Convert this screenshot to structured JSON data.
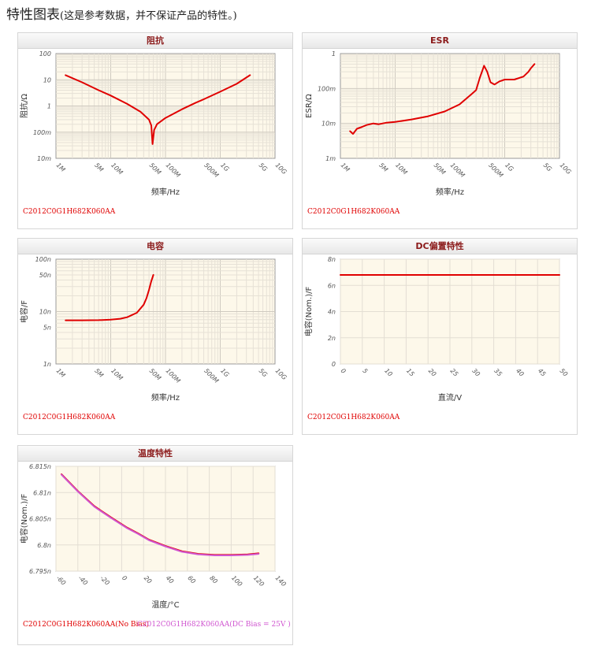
{
  "page": {
    "title": "特性图表",
    "note": "(这是参考数据，并不保证产品的特性。)"
  },
  "charts": [
    {
      "id": "impedance",
      "header": "阻抗",
      "part_labels": [
        {
          "text": "C2012C0G1H682K060AA",
          "color": "#e00000"
        }
      ],
      "chart_data": {
        "type": "line",
        "title": "阻抗",
        "xlabel": "频率/Hz",
        "ylabel": "阻抗/Ω",
        "xscale": "log",
        "yscale": "log",
        "xlim": [
          1000000,
          10000000000
        ],
        "ylim": [
          0.01,
          100
        ],
        "x_ticks": [
          {
            "v": 1000000,
            "label": "1M"
          },
          {
            "v": 5000000,
            "label": "5M"
          },
          {
            "v": 10000000,
            "label": "10M"
          },
          {
            "v": 50000000,
            "label": "50M"
          },
          {
            "v": 100000000,
            "label": "100M"
          },
          {
            "v": 500000000,
            "label": "500M"
          },
          {
            "v": 1000000000,
            "label": "1G"
          },
          {
            "v": 5000000000,
            "label": "5G"
          },
          {
            "v": 10000000000,
            "label": "10G"
          }
        ],
        "y_ticks": [
          {
            "v": 100,
            "label": "100"
          },
          {
            "v": 10,
            "label": "10"
          },
          {
            "v": 1,
            "label": "1"
          },
          {
            "v": 0.1,
            "label": "100m"
          },
          {
            "v": 0.01,
            "label": "10m"
          }
        ],
        "grid": true,
        "series": [
          {
            "color": "#e00000",
            "x": [
              1500000,
              3000000,
              6000000,
              10000000,
              20000000,
              35000000,
              50000000,
              55000000,
              58000000,
              62000000,
              70000000,
              100000000,
              200000000,
              350000000,
              500000000,
              1000000000,
              2000000000,
              3500000000
            ],
            "y": [
              15,
              8,
              4,
              2.5,
              1.2,
              0.6,
              0.3,
              0.18,
              0.035,
              0.12,
              0.2,
              0.35,
              0.75,
              1.3,
              1.8,
              3.5,
              7,
              15
            ]
          }
        ]
      }
    },
    {
      "id": "esr",
      "header": "ESR",
      "part_labels": [
        {
          "text": "C2012C0G1H682K060AA",
          "color": "#e00000"
        }
      ],
      "chart_data": {
        "type": "line",
        "title": "ESR",
        "xlabel": "频率/Hz",
        "ylabel": "ESR/Ω",
        "xscale": "log",
        "yscale": "log",
        "xlim": [
          1000000,
          10000000000
        ],
        "ylim": [
          0.001,
          1
        ],
        "x_ticks": [
          {
            "v": 1000000,
            "label": "1M"
          },
          {
            "v": 5000000,
            "label": "5M"
          },
          {
            "v": 10000000,
            "label": "10M"
          },
          {
            "v": 50000000,
            "label": "50M"
          },
          {
            "v": 100000000,
            "label": "100M"
          },
          {
            "v": 500000000,
            "label": "500M"
          },
          {
            "v": 1000000000,
            "label": "1G"
          },
          {
            "v": 5000000000,
            "label": "5G"
          },
          {
            "v": 10000000000,
            "label": "10G"
          }
        ],
        "y_ticks": [
          {
            "v": 1,
            "label": "1"
          },
          {
            "v": 0.1,
            "label": "100m"
          },
          {
            "v": 0.01,
            "label": "10m"
          },
          {
            "v": 0.001,
            "label": "1m"
          }
        ],
        "grid": true,
        "series": [
          {
            "color": "#e00000",
            "x": [
              1500000,
              1700000,
              2000000,
              2500000,
              3000000,
              4000000,
              5000000,
              7000000,
              10000000,
              20000000,
              40000000,
              80000000,
              150000000,
              250000000,
              300000000,
              350000000,
              420000000,
              480000000,
              550000000,
              650000000,
              800000000,
              1000000000,
              1500000000,
              2200000000,
              2700000000,
              3000000000,
              3500000000
            ],
            "y": [
              0.006,
              0.005,
              0.007,
              0.008,
              0.009,
              0.01,
              0.0095,
              0.0105,
              0.011,
              0.013,
              0.016,
              0.022,
              0.035,
              0.07,
              0.09,
              0.2,
              0.45,
              0.3,
              0.15,
              0.13,
              0.16,
              0.18,
              0.18,
              0.22,
              0.3,
              0.38,
              0.5
            ]
          }
        ]
      }
    },
    {
      "id": "capacitance",
      "header": "电容",
      "part_labels": [
        {
          "text": "C2012C0G1H682K060AA",
          "color": "#e00000"
        }
      ],
      "chart_data": {
        "type": "line",
        "title": "电容",
        "xlabel": "频率/Hz",
        "ylabel": "电容/F",
        "xscale": "log",
        "yscale": "log",
        "xlim": [
          1000000,
          10000000000
        ],
        "ylim": [
          1e-09,
          1e-07
        ],
        "x_ticks": [
          {
            "v": 1000000,
            "label": "1M"
          },
          {
            "v": 5000000,
            "label": "5M"
          },
          {
            "v": 10000000,
            "label": "10M"
          },
          {
            "v": 50000000,
            "label": "50M"
          },
          {
            "v": 100000000,
            "label": "100M"
          },
          {
            "v": 500000000,
            "label": "500M"
          },
          {
            "v": 1000000000,
            "label": "1G"
          },
          {
            "v": 5000000000,
            "label": "5G"
          },
          {
            "v": 10000000000,
            "label": "10G"
          }
        ],
        "y_ticks": [
          {
            "v": 1e-07,
            "label": "100n"
          },
          {
            "v": 5e-08,
            "label": "50n"
          },
          {
            "v": 1e-08,
            "label": "10n"
          },
          {
            "v": 5e-09,
            "label": "5n"
          },
          {
            "v": 1e-09,
            "label": "1n"
          }
        ],
        "grid": true,
        "series": [
          {
            "color": "#e00000",
            "x": [
              1500000,
              3000000,
              6000000,
              10000000,
              15000000,
              20000000,
              30000000,
              40000000,
              45000000,
              50000000,
              55000000,
              60000000
            ],
            "y": [
              6.8e-09,
              6.8e-09,
              6.85e-09,
              7e-09,
              7.3e-09,
              7.8e-09,
              9.5e-09,
              1.35e-08,
              1.8e-08,
              2.6e-08,
              3.8e-08,
              5e-08
            ]
          }
        ]
      }
    },
    {
      "id": "dc-bias",
      "header": "DC偏置特性",
      "part_labels": [
        {
          "text": "C2012C0G1H682K060AA",
          "color": "#e00000"
        }
      ],
      "chart_data": {
        "type": "line",
        "title": "DC偏置特性",
        "xlabel": "直流/V",
        "ylabel": "电容(Nom.)/F",
        "xscale": "linear",
        "yscale": "linear",
        "xlim": [
          0,
          50
        ],
        "ylim": [
          0,
          8e-09
        ],
        "x_ticks": [
          {
            "v": 0,
            "label": "0"
          },
          {
            "v": 5,
            "label": "5"
          },
          {
            "v": 10,
            "label": "10"
          },
          {
            "v": 15,
            "label": "15"
          },
          {
            "v": 20,
            "label": "20"
          },
          {
            "v": 25,
            "label": "25"
          },
          {
            "v": 30,
            "label": "30"
          },
          {
            "v": 35,
            "label": "35"
          },
          {
            "v": 40,
            "label": "40"
          },
          {
            "v": 45,
            "label": "45"
          },
          {
            "v": 50,
            "label": "50"
          }
        ],
        "y_ticks": [
          {
            "v": 8e-09,
            "label": "8n"
          },
          {
            "v": 6e-09,
            "label": "6n"
          },
          {
            "v": 4e-09,
            "label": "4n"
          },
          {
            "v": 2e-09,
            "label": "2n"
          },
          {
            "v": 0,
            "label": "0"
          }
        ],
        "grid": true,
        "series": [
          {
            "color": "#e00000",
            "x": [
              0,
              50
            ],
            "y": [
              6.8e-09,
              6.8e-09
            ]
          }
        ]
      }
    },
    {
      "id": "temperature",
      "header": "温度特性",
      "part_labels": [
        {
          "text": "C2012C0G1H682K060AA(No Bias)",
          "color": "#e00000"
        },
        {
          "text": "C2012C0G1H682K060AA(DC Bias = 25V )",
          "color": "#d055d0"
        }
      ],
      "chart_data": {
        "type": "line",
        "title": "温度特性",
        "xlabel": "温度/°C",
        "ylabel": "电容(Nom.)/F",
        "xscale": "linear",
        "yscale": "linear",
        "xlim": [
          -60,
          140
        ],
        "ylim": [
          6.795e-09,
          6.815e-09
        ],
        "x_ticks": [
          {
            "v": -60,
            "label": "-60"
          },
          {
            "v": -40,
            "label": "-40"
          },
          {
            "v": -20,
            "label": "-20"
          },
          {
            "v": 0,
            "label": "0"
          },
          {
            "v": 20,
            "label": "20"
          },
          {
            "v": 40,
            "label": "40"
          },
          {
            "v": 60,
            "label": "60"
          },
          {
            "v": 80,
            "label": "80"
          },
          {
            "v": 100,
            "label": "100"
          },
          {
            "v": 120,
            "label": "120"
          },
          {
            "v": 140,
            "label": "140"
          }
        ],
        "y_ticks": [
          {
            "v": 6.815e-09,
            "label": "6.815n"
          },
          {
            "v": 6.81e-09,
            "label": "6.81n"
          },
          {
            "v": 6.805e-09,
            "label": "6.805n"
          },
          {
            "v": 6.8e-09,
            "label": "6.8n"
          },
          {
            "v": 6.795e-09,
            "label": "6.795n"
          }
        ],
        "grid": true,
        "series": [
          {
            "color": "#e00000",
            "x": [
              -55,
              -40,
              -25,
              -10,
              5,
              15,
              25,
              40,
              55,
              70,
              85,
              100,
              115,
              125
            ],
            "y": [
              6.8135e-09,
              6.8103e-09,
              6.8074e-09,
              6.8053e-09,
              6.8033e-09,
              6.8022e-09,
              6.801e-09,
              6.7998e-09,
              6.7988e-09,
              6.7983e-09,
              6.7981e-09,
              6.7981e-09,
              6.7982e-09,
              6.7984e-09
            ]
          },
          {
            "color": "#d055d0",
            "x": [
              -55,
              -40,
              -25,
              -10,
              5,
              15,
              25,
              40,
              55,
              70,
              85,
              100,
              115,
              125
            ],
            "y": [
              6.8134e-09,
              6.8102e-09,
              6.8073e-09,
              6.8052e-09,
              6.8032e-09,
              6.8021e-09,
              6.8009e-09,
              6.7997e-09,
              6.7987e-09,
              6.7982e-09,
              6.798e-09,
              6.798e-09,
              6.7981e-09,
              6.7983e-09
            ]
          }
        ]
      }
    }
  ]
}
